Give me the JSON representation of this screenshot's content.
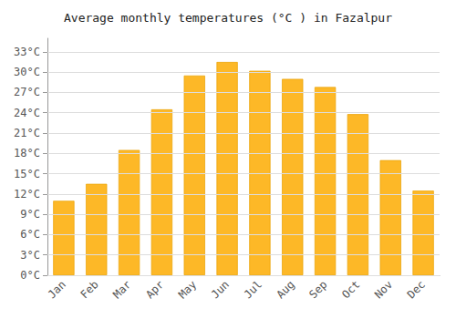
{
  "chart_data": {
    "type": "bar",
    "title": "Average monthly temperatures (°C ) in Fazalpur",
    "categories": [
      "Jan",
      "Feb",
      "Mar",
      "Apr",
      "May",
      "Jun",
      "Jul",
      "Aug",
      "Sep",
      "Oct",
      "Nov",
      "Dec"
    ],
    "values": [
      11,
      13.5,
      18.5,
      24.5,
      29.5,
      31.5,
      30.2,
      29,
      27.8,
      23.8,
      17,
      12.5
    ],
    "color": "#FDB827",
    "ylim": [
      0,
      35
    ],
    "yticks": [
      {
        "value": 0,
        "label": "0°C"
      },
      {
        "value": 3,
        "label": "3°C"
      },
      {
        "value": 6,
        "label": "6°C"
      },
      {
        "value": 9,
        "label": "9°C"
      },
      {
        "value": 12,
        "label": "12°C"
      },
      {
        "value": 15,
        "label": "15°C"
      },
      {
        "value": 18,
        "label": "18°C"
      },
      {
        "value": 21,
        "label": "21°C"
      },
      {
        "value": 24,
        "label": "24°C"
      },
      {
        "value": 27,
        "label": "27°C"
      },
      {
        "value": 30,
        "label": "30°C"
      },
      {
        "value": 33,
        "label": "33°C"
      }
    ],
    "grid": true
  }
}
